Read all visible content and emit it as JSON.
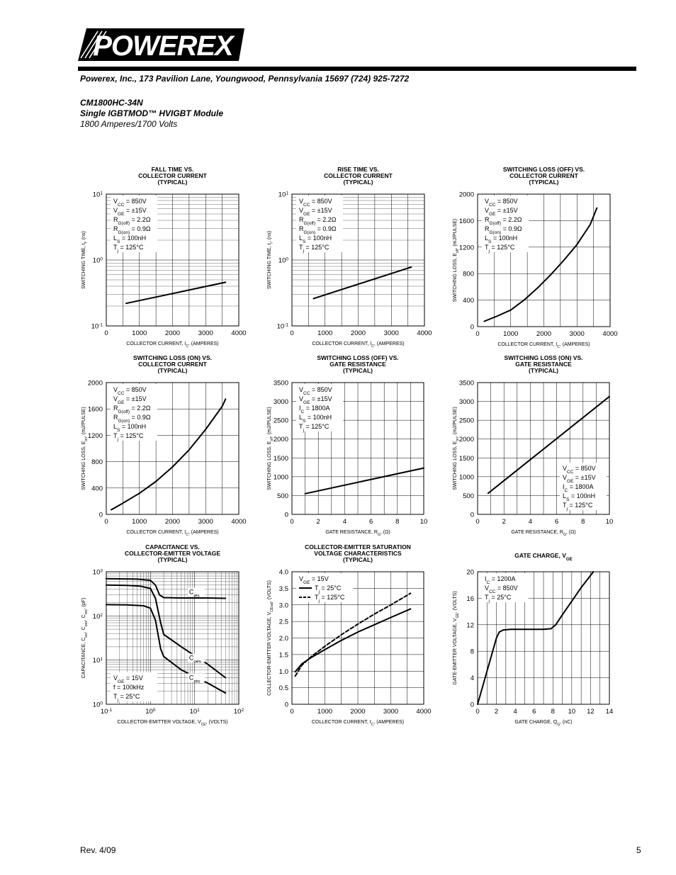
{
  "header": {
    "logo_text": "POWEREX",
    "address": "Powerex, Inc., 173 Pavilion Lane, Youngwood, Pennsylvania 15697 (724) 925-7272",
    "part_number": "CM1800HC-34N",
    "module_desc": "Single IGBTMOD™ HVIGBT Module",
    "rating": "1800 Amperes/1700 Volts"
  },
  "footer": {
    "revision": "Rev. 4/09",
    "page": "5"
  },
  "chart_data": [
    {
      "id": "fall-time",
      "type": "line",
      "title": [
        "FALL TIME VS.",
        "COLLECTOR CURRENT",
        "(TYPICAL)"
      ],
      "xlabel": "COLLECTOR CURRENT, I_C, (AMPERES)",
      "ylabel": "SWITCHING TIME, t_f, (ns)",
      "ylabel_unit": "",
      "yscale": "log",
      "xlim": [
        0,
        4000
      ],
      "ylim": [
        0.1,
        10
      ],
      "xticks": [
        0,
        1000,
        2000,
        3000,
        4000
      ],
      "yticks_log": [
        {
          "base": "10",
          "exp": "-1",
          "v": 0.1
        },
        {
          "base": "10",
          "exp": "0",
          "v": 1
        },
        {
          "base": "10",
          "exp": "1",
          "v": 10
        }
      ],
      "minor_decade_grid": true,
      "annotation": [
        "V_CC = 850V",
        "V_GE = ±15V",
        "R_G(off) = 2.2Ω",
        "R_G(on) = 0.9Ω",
        "L_S = 100nH",
        "T_j = 125°C"
      ],
      "series": [
        {
          "style": "solid",
          "x": [
            600,
            3600
          ],
          "y": [
            0.22,
            0.46
          ]
        }
      ]
    },
    {
      "id": "rise-time",
      "type": "line",
      "title": [
        "RISE TIME VS.",
        "COLLECTOR CURRENT",
        "(TYPICAL)"
      ],
      "xlabel": "COLLECTOR CURRENT, I_C, (AMPERES)",
      "ylabel": "SWITCHING TIME, t_r, (ns)",
      "yscale": "log",
      "xlim": [
        0,
        4000
      ],
      "ylim": [
        0.1,
        10
      ],
      "xticks": [
        0,
        1000,
        2000,
        3000,
        4000
      ],
      "yticks_log": [
        {
          "base": "10",
          "exp": "-1",
          "v": 0.1
        },
        {
          "base": "10",
          "exp": "0",
          "v": 1
        },
        {
          "base": "10",
          "exp": "1",
          "v": 10
        }
      ],
      "minor_decade_grid": true,
      "annotation": [
        "V_CC = 850V",
        "V_GE = ±15V",
        "R_G(off) = 2.2Ω",
        "R_G(on) = 0.9Ω",
        "L_S = 100nH",
        "T_j = 125°C"
      ],
      "series": [
        {
          "style": "solid",
          "x": [
            650,
            3600
          ],
          "y": [
            0.26,
            0.78
          ]
        }
      ]
    },
    {
      "id": "esw-off-ic",
      "type": "line",
      "title": [
        "SWITCHING LOSS (OFF) VS.",
        "COLLECTOR CURRENT",
        "(TYPICAL)"
      ],
      "xlabel": "COLLECTOR CURRENT, I_C, (AMPERES)",
      "ylabel": "SWITCHING LOSS, E_off, (mJ/PULSE)",
      "xlim": [
        0,
        4000
      ],
      "ylim": [
        0,
        2000
      ],
      "xticks": [
        0,
        1000,
        2000,
        3000,
        4000
      ],
      "yticks": [
        0,
        400,
        800,
        1200,
        1600,
        2000
      ],
      "annotation": [
        "V_CC = 850V",
        "V_GE = ±15V",
        "R_G(off) = 2.2Ω",
        "R_G(on) = 0.9Ω",
        "L_S = 100nH",
        "T_j = 125°C"
      ],
      "series": [
        {
          "style": "solid",
          "x": [
            200,
            600,
            1000,
            1400,
            1800,
            2200,
            2600,
            3000,
            3400,
            3600
          ],
          "y": [
            80,
            160,
            250,
            400,
            580,
            780,
            1000,
            1240,
            1540,
            1790
          ]
        }
      ]
    },
    {
      "id": "esw-on-ic",
      "type": "line",
      "title": [
        "SWITCHING LOSS (ON) VS.",
        "COLLECTOR CURRENT",
        "(TYPICAL)"
      ],
      "xlabel": "COLLECTOR CURRENT, I_C, (AMPERES)",
      "ylabel": "SWITCHING LOSS, E_on, (mJ/PULSE)",
      "xlim": [
        0,
        4000
      ],
      "ylim": [
        0,
        2000
      ],
      "xticks": [
        0,
        1000,
        2000,
        3000,
        4000
      ],
      "yticks": [
        0,
        400,
        800,
        1200,
        1600,
        2000
      ],
      "annotation": [
        "V_CC = 850V",
        "V_GE = ±15V",
        "R_G(off) = 2.2Ω",
        "R_G(on) = 0.9Ω",
        "L_S = 100nH",
        "T_j = 125°C"
      ],
      "series": [
        {
          "style": "solid",
          "x": [
            150,
            500,
            1000,
            1500,
            2000,
            2500,
            3000,
            3500,
            3600
          ],
          "y": [
            70,
            170,
            320,
            500,
            720,
            980,
            1290,
            1640,
            1750
          ]
        }
      ]
    },
    {
      "id": "esw-off-rg",
      "type": "line",
      "title": [
        "SWITCHING LOSS (OFF) VS.",
        "GATE RESISTANCE",
        "(TYPICAL)"
      ],
      "xlabel": "GATE RESISTANCE, R_G, (Ω)",
      "ylabel": "SWITCHING LOSS, E_off, (mJ/PULSE)",
      "xlim": [
        0,
        10
      ],
      "ylim": [
        0,
        3500
      ],
      "xticks": [
        0,
        2,
        4,
        6,
        8,
        10
      ],
      "yticks": [
        0,
        500,
        1000,
        1500,
        2000,
        2500,
        3000,
        3500
      ],
      "annotation": [
        "V_CC = 850V",
        "V_GE = ±15V",
        "I_C = 1800A",
        "L_S = 100nH",
        "T_j = 125°C"
      ],
      "series": [
        {
          "style": "solid",
          "x": [
            1,
            10
          ],
          "y": [
            550,
            1230
          ]
        }
      ]
    },
    {
      "id": "esw-on-rg",
      "type": "line",
      "title": [
        "SWITCHING LOSS (ON) VS.",
        "GATE RESISTANCE",
        "(TYPICAL)"
      ],
      "xlabel": "GATE RESISTANCE, R_G, (Ω)",
      "ylabel": "SWITCHING LOSS, E_on, (mJ/PULSE)",
      "xlim": [
        0,
        10
      ],
      "ylim": [
        0,
        3500
      ],
      "xticks": [
        0,
        2,
        4,
        6,
        8,
        10
      ],
      "yticks": [
        0,
        500,
        1000,
        1500,
        2000,
        2500,
        3000,
        3500
      ],
      "annotation": [
        "V_CC = 850V",
        "V_GE = ±15V",
        "I_C = 1800A",
        "L_S = 100nH",
        "T_j = 125°C"
      ],
      "annotation_pos": "bottom-right",
      "series": [
        {
          "style": "solid",
          "x": [
            0.8,
            10
          ],
          "y": [
            560,
            3130
          ]
        }
      ]
    },
    {
      "id": "capacitance",
      "type": "line",
      "title": [
        "CAPACITANCE VS.",
        "COLLECTOR-EMITTER VOLTAGE",
        "(TYPICAL)"
      ],
      "xlabel": "COLLECTOR-EMITTER VOLTAGE, V_CE, (VOLTS)",
      "ylabel": "CAPACITANCE, C_ies, C_oes, C_res, (pF)",
      "xscale": "log",
      "yscale": "log",
      "xlim": [
        0.1,
        100
      ],
      "ylim": [
        1,
        1000
      ],
      "xticks_log": [
        {
          "base": "10",
          "exp": "-1",
          "v": 0.1
        },
        {
          "base": "10",
          "exp": "0",
          "v": 1
        },
        {
          "base": "10",
          "exp": "1",
          "v": 10
        },
        {
          "base": "10",
          "exp": "2",
          "v": 100
        }
      ],
      "yticks_log": [
        {
          "base": "10",
          "exp": "0",
          "v": 1
        },
        {
          "base": "10",
          "exp": "1",
          "v": 10
        },
        {
          "base": "10",
          "exp": "2",
          "v": 100
        },
        {
          "base": "10",
          "exp": "3",
          "v": 1000
        }
      ],
      "minor_decade_grid": true,
      "annotation": [
        "V_GE = 15V",
        "f = 100kHz",
        "T_j = 25°C"
      ],
      "annotation_pos": "bottom-left",
      "series": [
        {
          "name": "C_ies",
          "style": "solid",
          "x": [
            0.1,
            0.5,
            1.0,
            1.3,
            1.6,
            2.0,
            5,
            20,
            50
          ],
          "y": [
            700,
            680,
            640,
            500,
            300,
            260,
            255,
            255,
            250
          ]
        },
        {
          "name": "C_oes",
          "style": "solid",
          "x": [
            0.1,
            0.3,
            0.6,
            1.0,
            1.3,
            1.7,
            2.0,
            5,
            20,
            50
          ],
          "y": [
            500,
            490,
            470,
            420,
            250,
            70,
            38,
            20,
            8,
            4
          ]
        },
        {
          "name": "C_res",
          "style": "solid",
          "x": [
            0.1,
            0.3,
            0.7,
            1.0,
            1.3,
            1.7,
            2.0,
            5,
            20,
            50
          ],
          "y": [
            180,
            178,
            170,
            150,
            80,
            18,
            12,
            6,
            3,
            1.8
          ]
        }
      ],
      "labels": [
        {
          "text": "C_ies",
          "x": 7.5,
          "y": 310
        },
        {
          "text": "C_oes",
          "x": 7.5,
          "y": 10
        },
        {
          "text": "C_res",
          "x": 7.5,
          "y": 3.6
        }
      ]
    },
    {
      "id": "vcesat",
      "type": "line",
      "title": [
        "COLLECTOR-EMITTER SATURATION",
        "VOLTAGE CHARACTERISTICS",
        "(TYPICAL)"
      ],
      "xlabel": "COLLECTOR CURRENT, I_C, (AMPERES)",
      "ylabel": "COLLECTOR-EMITTER VOLTAGE, V_CEsat, (VOLTS)",
      "xlim": [
        0,
        4000
      ],
      "ylim": [
        0,
        4.0
      ],
      "xticks": [
        0,
        1000,
        2000,
        3000,
        4000
      ],
      "yticks": [
        0,
        0.5,
        1.0,
        1.5,
        2.0,
        2.5,
        3.0,
        3.5,
        4.0
      ],
      "annotation": [
        "V_GE = 15V"
      ],
      "legend": [
        {
          "style": "solid",
          "label": "T_j = 25°C"
        },
        {
          "style": "dashed",
          "label": "T_j = 125°C"
        }
      ],
      "series": [
        {
          "name": "T_j = 25°C",
          "style": "solid",
          "x": [
            100,
            300,
            600,
            1000,
            1500,
            2000,
            2500,
            3000,
            3600
          ],
          "y": [
            0.98,
            1.22,
            1.42,
            1.65,
            1.93,
            2.18,
            2.4,
            2.62,
            2.88
          ]
        },
        {
          "name": "T_j = 125°C",
          "style": "dashed",
          "x": [
            100,
            300,
            600,
            1000,
            1500,
            2000,
            2500,
            3000,
            3600
          ],
          "y": [
            0.85,
            1.18,
            1.45,
            1.75,
            2.1,
            2.42,
            2.72,
            3.0,
            3.35
          ]
        }
      ]
    },
    {
      "id": "gate-charge",
      "type": "line",
      "title": [
        "GATE CHARGE, V_GE"
      ],
      "xlabel": "GATE CHARGE, Q_G, (nC)",
      "ylabel": "GATE-EMITTER VOLTAGE, V_GE, (VOLTS)",
      "xlim": [
        0,
        14
      ],
      "ylim": [
        0,
        20
      ],
      "xticks": [
        0,
        2,
        4,
        6,
        8,
        10,
        12,
        14
      ],
      "yticks": [
        0,
        4,
        8,
        12,
        16,
        20
      ],
      "annotation": [
        "I_C = 1200A",
        "V_CC = 850V",
        "T_j = 25°C"
      ],
      "series": [
        {
          "style": "solid",
          "x": [
            0,
            2.0,
            2.3,
            2.7,
            3.5,
            5,
            7,
            7.8,
            8.3,
            9,
            11,
            12.3
          ],
          "y": [
            0,
            10,
            10.9,
            11.2,
            11.3,
            11.3,
            11.3,
            11.4,
            12,
            13.5,
            17.6,
            20
          ]
        }
      ]
    }
  ]
}
